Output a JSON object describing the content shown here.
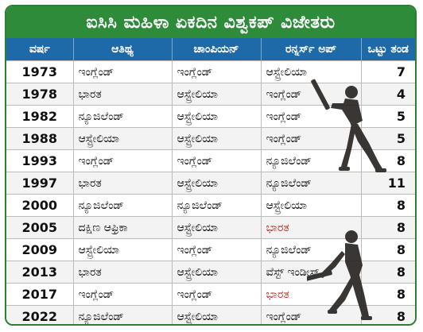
{
  "title": "ಐಸಿಸಿ ಮಹಿಳಾ ಏಕದಿನ ವಿಶ್ವಕಪ್ ವಿಜೇತರು",
  "headers": {
    "year": "ವರ್ಷ",
    "host": "ಆತಿಥ್ಯ",
    "champion": "ಚಾಂಪಿಯನ್",
    "runner_up": "ರನ್ನರ್ಸ್ ಅಪ್",
    "teams": "ಒಟ್ಟು ತಂಡ"
  },
  "highlight_color": "#b5271d",
  "rows": [
    {
      "year": "1973",
      "host": "ಇಂಗ್ಲೆಂಡ್",
      "champion": "ಇಂಗ್ಲೆಂಡ್",
      "runner_up": "ಆಸ್ಟ್ರೇಲಿಯಾ",
      "runner_up_highlight": false,
      "teams": "7"
    },
    {
      "year": "1978",
      "host": "ಭಾರತ",
      "champion": "ಆಸ್ಟ್ರೇಲಿಯಾ",
      "runner_up": "ಇಂಗ್ಲೆಂಡ್",
      "runner_up_highlight": false,
      "teams": "4"
    },
    {
      "year": "1982",
      "host": "ನ್ಯೂಜಿಲೆಂಡ್",
      "champion": "ಆಸ್ಟ್ರೇಲಿಯಾ",
      "runner_up": "ಇಂಗ್ಲೆಂಡ್",
      "runner_up_highlight": false,
      "teams": "5"
    },
    {
      "year": "1988",
      "host": "ಆಸ್ಟ್ರೇಲಿಯಾ",
      "champion": "ಆಸ್ಟ್ರೇಲಿಯಾ",
      "runner_up": "ಇಂಗ್ಲೆಂಡ್",
      "runner_up_highlight": false,
      "teams": "5"
    },
    {
      "year": "1993",
      "host": "ಇಂಗ್ಲೆಂಡ್",
      "champion": "ಇಂಗ್ಲೆಂಡ್",
      "runner_up": "ನ್ಯೂಜಿಲೆಂಡ್",
      "runner_up_highlight": false,
      "teams": "8"
    },
    {
      "year": "1997",
      "host": "ಭಾರತ",
      "champion": "ಆಸ್ಟ್ರೇಲಿಯಾ",
      "runner_up": "ನ್ಯೂಜಿಲೆಂಡ್",
      "runner_up_highlight": false,
      "teams": "11"
    },
    {
      "year": "2000",
      "host": "ನ್ಯೂಜಿಲೆಂಡ್",
      "champion": "ನ್ಯೂಜಿಲೆಂಡ್",
      "runner_up": "ಆಸ್ಟ್ರೇಲಿಯಾ",
      "runner_up_highlight": false,
      "teams": "8"
    },
    {
      "year": "2005",
      "host": "ದಕ್ಷಿಣ ಆಫ್ರಿಕಾ",
      "champion": "ಆಸ್ಟ್ರೇಲಿಯಾ",
      "runner_up": "ಭಾರತ",
      "runner_up_highlight": true,
      "teams": "8"
    },
    {
      "year": "2009",
      "host": "ಆಸ್ಟ್ರೇಲಿಯಾ",
      "champion": "ಇಂಗ್ಲೆಂಡ್",
      "runner_up": "ನ್ಯೂಜಿಲೆಂಡ್",
      "runner_up_highlight": false,
      "teams": "8"
    },
    {
      "year": "2013",
      "host": "ಭಾರತ",
      "champion": "ಆಸ್ಟ್ರೇಲಿಯಾ",
      "runner_up": "ವೆಸ್ಟ್ ಇಂಡೀಸ್",
      "runner_up_highlight": false,
      "teams": "8"
    },
    {
      "year": "2017",
      "host": "ಇಂಗ್ಲೆಂಡ್",
      "champion": "ಇಂಗ್ಲೆಂಡ್",
      "runner_up": "ಭಾರತ",
      "runner_up_highlight": true,
      "teams": "8"
    },
    {
      "year": "2022",
      "host": "ನ್ಯೂಜಿಲೆಂಡ್",
      "champion": "ಆಸ್ಟ್ರೇಲಿಯಾ",
      "runner_up": "ಇಂಗ್ಲೆಂಡ್",
      "runner_up_highlight": false,
      "teams": "8"
    }
  ],
  "illustrations": [
    "batter-silhouette-icon",
    "batter-silhouette-icon"
  ]
}
